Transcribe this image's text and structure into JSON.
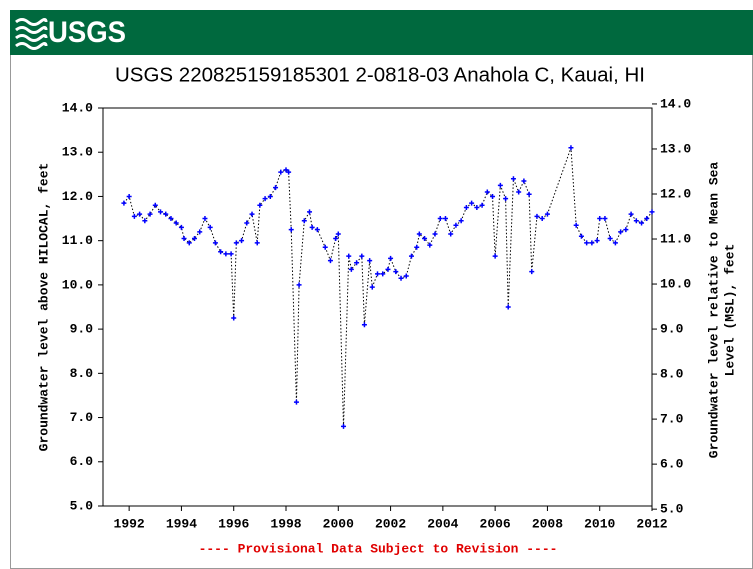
{
  "chart_data": {
    "type": "line",
    "logo": "USGS",
    "title": "USGS 220825159185301 2-0818-03 Anahola C, Kauai, HI",
    "ylabel": "Groundwater level above HILOCAL, feet",
    "y2label": [
      "Groundwater level relative to Mean Sea",
      "Level (MSL), feet"
    ],
    "footer": "---- Provisional Data Subject to Revision ----",
    "x": [
      1991.8,
      1992.0,
      1992.2,
      1992.4,
      1992.6,
      1992.8,
      1993.0,
      1993.2,
      1993.4,
      1993.6,
      1993.8,
      1994.0,
      1994.1,
      1994.3,
      1994.5,
      1994.7,
      1994.9,
      1995.1,
      1995.3,
      1995.5,
      1995.7,
      1995.9,
      1996.0,
      1996.1,
      1996.3,
      1996.5,
      1996.7,
      1996.9,
      1997.0,
      1997.2,
      1997.4,
      1997.6,
      1997.8,
      1998.0,
      1998.1,
      1998.2,
      1998.4,
      1998.5,
      1998.7,
      1998.9,
      1999.0,
      1999.2,
      1999.5,
      1999.7,
      1999.9,
      2000.0,
      2000.2,
      2000.4,
      2000.5,
      2000.7,
      2000.9,
      2001.0,
      2001.2,
      2001.3,
      2001.5,
      2001.7,
      2001.9,
      2002.0,
      2002.2,
      2002.4,
      2002.6,
      2002.8,
      2003.0,
      2003.1,
      2003.3,
      2003.5,
      2003.7,
      2003.9,
      2004.1,
      2004.3,
      2004.5,
      2004.7,
      2004.9,
      2005.1,
      2005.3,
      2005.5,
      2005.7,
      2005.9,
      2006.0,
      2006.2,
      2006.4,
      2006.5,
      2006.7,
      2006.9,
      2007.1,
      2007.3,
      2007.4,
      2007.6,
      2007.8,
      2008.0,
      2008.9,
      2009.1,
      2009.3,
      2009.5,
      2009.7,
      2009.9,
      2010.0,
      2010.2,
      2010.4,
      2010.6,
      2010.8,
      2011.0,
      2011.2,
      2011.4,
      2011.6,
      2011.8,
      2012.0
    ],
    "values": [
      11.85,
      12.0,
      11.55,
      11.6,
      11.45,
      11.6,
      11.8,
      11.65,
      11.6,
      11.5,
      11.4,
      11.3,
      11.05,
      10.95,
      11.05,
      11.2,
      11.5,
      11.3,
      10.95,
      10.75,
      10.7,
      10.7,
      9.25,
      10.95,
      11.0,
      11.4,
      11.6,
      10.95,
      11.8,
      11.95,
      12.0,
      12.2,
      12.55,
      12.6,
      12.55,
      11.25,
      7.35,
      10.0,
      11.45,
      11.65,
      11.3,
      11.25,
      10.85,
      10.55,
      11.05,
      11.15,
      6.8,
      10.65,
      10.35,
      10.5,
      10.65,
      9.1,
      10.55,
      9.95,
      10.25,
      10.25,
      10.35,
      10.6,
      10.3,
      10.15,
      10.2,
      10.65,
      10.85,
      11.15,
      11.05,
      10.9,
      11.15,
      11.5,
      11.5,
      11.15,
      11.35,
      11.45,
      11.75,
      11.85,
      11.75,
      11.8,
      12.1,
      12.0,
      10.65,
      12.25,
      11.95,
      9.5,
      12.4,
      12.1,
      12.35,
      12.05,
      10.3,
      11.55,
      11.5,
      11.6,
      13.1,
      11.35,
      11.1,
      10.95,
      10.95,
      11.0,
      11.5,
      11.5,
      11.05,
      10.95,
      11.2,
      11.25,
      11.6,
      11.45,
      11.4,
      11.5,
      11.65
    ],
    "line_color": "#000000",
    "marker_color": "#0000ff",
    "xlim": [
      1991,
      2012
    ],
    "xticks": [
      1992,
      1994,
      1996,
      1998,
      2000,
      2002,
      2004,
      2006,
      2008,
      2010,
      2012
    ],
    "ylim": [
      5,
      14
    ],
    "yticks": [
      {
        "value": 5,
        "label": "5.0"
      },
      {
        "value": 6,
        "label": "6.0"
      },
      {
        "value": 7,
        "label": "7.0"
      },
      {
        "value": 8,
        "label": "8.0"
      },
      {
        "value": 9,
        "label": "9.0"
      },
      {
        "value": 10,
        "label": "10.0"
      },
      {
        "value": 11,
        "label": "11.0"
      },
      {
        "value": 12,
        "label": "12.0"
      },
      {
        "value": 13,
        "label": "13.0"
      },
      {
        "value": 14,
        "label": "14.0"
      }
    ],
    "y2lim": [
      5.07,
      13.91
    ],
    "y2ticks": [
      {
        "value": 5,
        "label": "5.0"
      },
      {
        "value": 6,
        "label": "6.0"
      },
      {
        "value": 7,
        "label": "7.0"
      },
      {
        "value": 8,
        "label": "8.0"
      },
      {
        "value": 9,
        "label": "9.0"
      },
      {
        "value": 10,
        "label": "10.0"
      },
      {
        "value": 11,
        "label": "11.0"
      },
      {
        "value": 12,
        "label": "12.0"
      },
      {
        "value": 13,
        "label": "13.0"
      },
      {
        "value": 14,
        "label": "14.0"
      }
    ]
  }
}
